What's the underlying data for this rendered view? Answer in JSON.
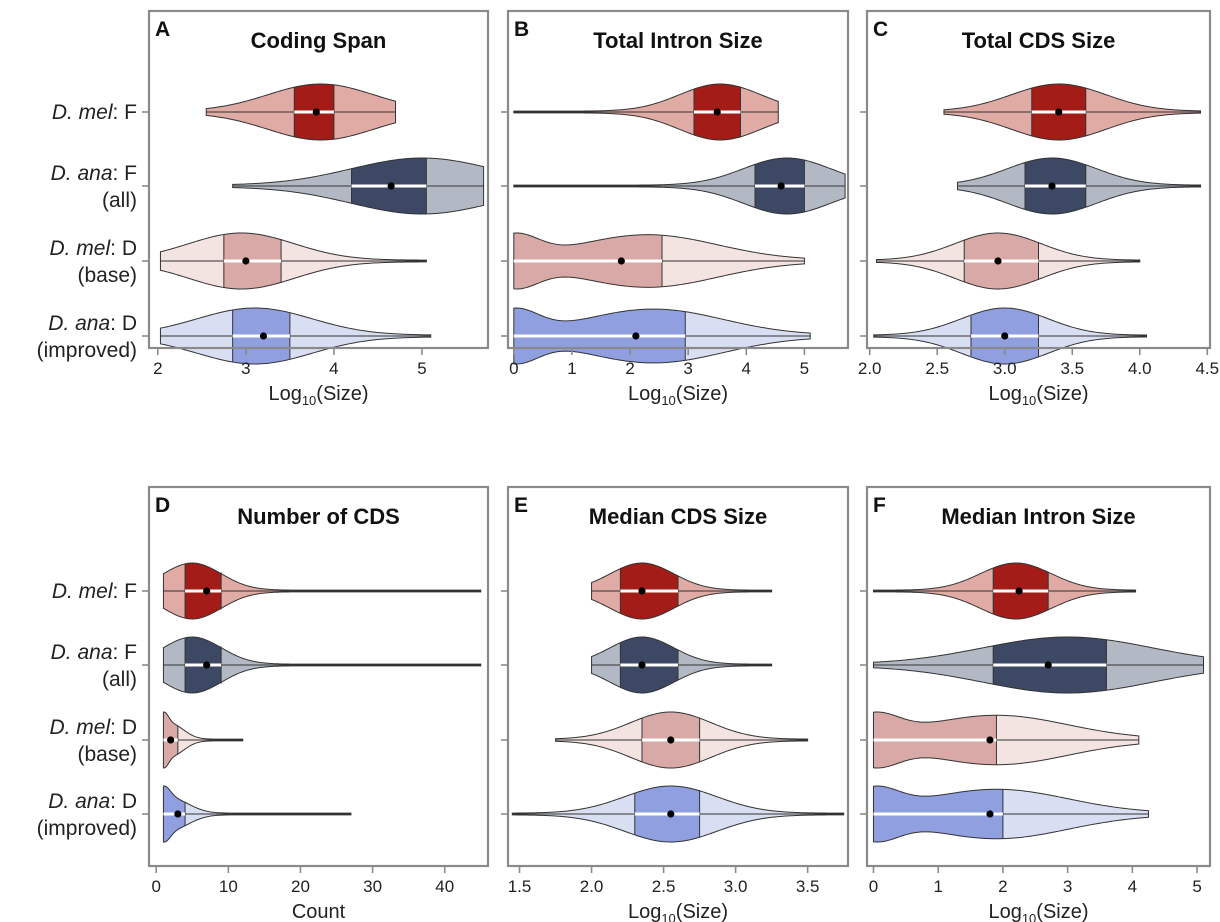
{
  "figure": {
    "row_labels": [
      {
        "italic": "D. mel",
        "rest": ": F",
        "sub": ""
      },
      {
        "italic": "D. ana",
        "rest": ": F",
        "sub": "(all)"
      },
      {
        "italic": "D. mel",
        "rest": ": D",
        "sub": "(base)"
      },
      {
        "italic": "D. ana",
        "rest": ": D",
        "sub": "(improved)"
      }
    ],
    "colors": {
      "mel_F": {
        "body": "#e0aaa5",
        "iqr": "#a31c17"
      },
      "ana_F": {
        "body": "#b3b9c4",
        "iqr": "#3c4864"
      },
      "mel_D": {
        "body": "#f3e3e1",
        "iqr": "#d9a9a7"
      },
      "ana_D": {
        "body": "#d8dff2",
        "iqr": "#8f9fdf"
      }
    }
  },
  "chart_data": [
    {
      "panel": "A",
      "title": "Coding Span",
      "type": "violin",
      "xlabel": "Log10(Size)",
      "xlim": [
        1.9,
        5.75
      ],
      "xticks": [
        2,
        3,
        4,
        5
      ],
      "xtick_labels": [
        "2",
        "3",
        "4",
        "5"
      ],
      "series": [
        {
          "min": 2.55,
          "q1": 3.55,
          "median": 3.85,
          "q3": 4.0,
          "mean": 3.8,
          "max": 4.7,
          "mode": 3.85,
          "spread": 0.6
        },
        {
          "min": 2.85,
          "q1": 4.2,
          "median": 4.7,
          "q3": 5.05,
          "mean": 4.65,
          "max": 5.7,
          "mode": 5.0,
          "spread": 0.8
        },
        {
          "min": 2.03,
          "q1": 2.75,
          "median": 3.0,
          "q3": 3.4,
          "mean": 3.0,
          "max": 5.05,
          "mode": 2.95,
          "spread": 0.6
        },
        {
          "min": 2.03,
          "q1": 2.85,
          "median": 3.2,
          "q3": 3.5,
          "mean": 3.2,
          "max": 5.1,
          "mode": 3.1,
          "spread": 0.65
        }
      ]
    },
    {
      "panel": "B",
      "title": "Total Intron Size",
      "type": "violin",
      "xlabel": "Log10(Size)",
      "xlim": [
        -0.1,
        5.75
      ],
      "xticks": [
        0,
        1,
        2,
        3,
        4,
        5
      ],
      "xtick_labels": [
        "0",
        "1",
        "2",
        "3",
        "4",
        "5"
      ],
      "series": [
        {
          "min": 0.0,
          "q1": 3.1,
          "median": 3.55,
          "q3": 3.9,
          "mean": 3.5,
          "max": 4.55,
          "mode": 3.55,
          "spread": 0.7
        },
        {
          "min": 0.0,
          "q1": 4.15,
          "median": 4.6,
          "q3": 5.0,
          "mean": 4.6,
          "max": 5.7,
          "mode": 4.7,
          "spread": 0.75
        },
        {
          "min": 0.0,
          "q1": 0.0,
          "median": 2.0,
          "q3": 2.55,
          "mean": 1.85,
          "max": 5.0,
          "mode": 2.3,
          "spread": 1.2
        },
        {
          "min": 0.0,
          "q1": 0.0,
          "median": 2.2,
          "q3": 2.95,
          "mean": 2.1,
          "max": 5.1,
          "mode": 2.4,
          "spread": 1.2
        }
      ]
    },
    {
      "panel": "C",
      "title": "Total CDS Size",
      "type": "violin",
      "xlabel": "Log10(Size)",
      "xlim": [
        1.98,
        4.52
      ],
      "xticks": [
        2.0,
        2.5,
        3.0,
        3.5,
        4.0,
        4.5
      ],
      "xtick_labels": [
        "2.0",
        "2.5",
        "3.0",
        "3.5",
        "4.0",
        "4.5"
      ],
      "series": [
        {
          "min": 2.55,
          "q1": 3.2,
          "median": 3.4,
          "q3": 3.6,
          "mean": 3.4,
          "max": 4.45,
          "mode": 3.4,
          "spread": 0.35
        },
        {
          "min": 2.65,
          "q1": 3.15,
          "median": 3.35,
          "q3": 3.6,
          "mean": 3.35,
          "max": 4.45,
          "mode": 3.35,
          "spread": 0.33
        },
        {
          "min": 2.05,
          "q1": 2.7,
          "median": 2.95,
          "q3": 3.25,
          "mean": 2.95,
          "max": 4.0,
          "mode": 2.95,
          "spread": 0.32
        },
        {
          "min": 2.03,
          "q1": 2.75,
          "median": 3.0,
          "q3": 3.25,
          "mean": 3.0,
          "max": 4.05,
          "mode": 3.0,
          "spread": 0.32
        }
      ]
    },
    {
      "panel": "D",
      "title": "Number of CDS",
      "type": "violin",
      "xlabel": "Count",
      "xlim": [
        -1,
        46
      ],
      "xticks": [
        0,
        10,
        20,
        30,
        40
      ],
      "xtick_labels": [
        "0",
        "10",
        "20",
        "30",
        "40"
      ],
      "series": [
        {
          "min": 1,
          "q1": 4,
          "median": 7,
          "q3": 9,
          "mean": 7,
          "max": 45,
          "mode": 5,
          "spread": 4
        },
        {
          "min": 1,
          "q1": 4,
          "median": 7,
          "q3": 9,
          "mean": 7,
          "max": 45,
          "mode": 5,
          "spread": 4
        },
        {
          "min": 1,
          "q1": 1,
          "median": 2,
          "q3": 3,
          "mean": 2,
          "max": 12,
          "mode": 2,
          "spread": 1.8
        },
        {
          "min": 1,
          "q1": 1,
          "median": 2,
          "q3": 4,
          "mean": 3,
          "max": 27,
          "mode": 2,
          "spread": 2.5
        }
      ]
    },
    {
      "panel": "E",
      "title": "Median CDS Size",
      "type": "violin",
      "xlabel": "Log10(Size)",
      "xlim": [
        1.42,
        3.78
      ],
      "xticks": [
        1.5,
        2.0,
        2.5,
        3.0,
        3.5
      ],
      "xtick_labels": [
        "1.5",
        "2.0",
        "2.5",
        "3.0",
        "3.5"
      ],
      "series": [
        {
          "min": 2.0,
          "q1": 2.2,
          "median": 2.4,
          "q3": 2.6,
          "mean": 2.35,
          "max": 3.25,
          "mode": 2.35,
          "spread": 0.22
        },
        {
          "min": 2.0,
          "q1": 2.2,
          "median": 2.4,
          "q3": 2.6,
          "mean": 2.35,
          "max": 3.25,
          "mode": 2.35,
          "spread": 0.22
        },
        {
          "min": 1.75,
          "q1": 2.35,
          "median": 2.55,
          "q3": 2.75,
          "mean": 2.55,
          "max": 3.5,
          "mode": 2.55,
          "spread": 0.28
        },
        {
          "min": 1.45,
          "q1": 2.3,
          "median": 2.55,
          "q3": 2.75,
          "mean": 2.55,
          "max": 3.75,
          "mode": 2.55,
          "spread": 0.32
        }
      ]
    },
    {
      "panel": "F",
      "title": "Median Intron Size",
      "type": "violin",
      "xlabel": "Log10(Size)",
      "xlim": [
        -0.1,
        5.2
      ],
      "xticks": [
        0,
        1,
        2,
        3,
        4,
        5
      ],
      "xtick_labels": [
        "0",
        "1",
        "2",
        "3",
        "4",
        "5"
      ],
      "series": [
        {
          "min": 0.0,
          "q1": 1.85,
          "median": 2.2,
          "q3": 2.7,
          "mean": 2.25,
          "max": 4.05,
          "mode": 2.2,
          "spread": 0.55
        },
        {
          "min": 0.0,
          "q1": 1.85,
          "median": 2.8,
          "q3": 3.6,
          "mean": 2.7,
          "max": 5.1,
          "mode": 3.0,
          "spread": 1.3
        },
        {
          "min": 0.0,
          "q1": 0.0,
          "median": 1.85,
          "q3": 1.9,
          "mean": 1.8,
          "max": 4.1,
          "mode": 1.9,
          "spread": 1.1
        },
        {
          "min": 0.0,
          "q1": 0.0,
          "median": 1.85,
          "q3": 2.0,
          "mean": 1.8,
          "max": 4.25,
          "mode": 1.9,
          "spread": 1.1
        }
      ]
    }
  ]
}
